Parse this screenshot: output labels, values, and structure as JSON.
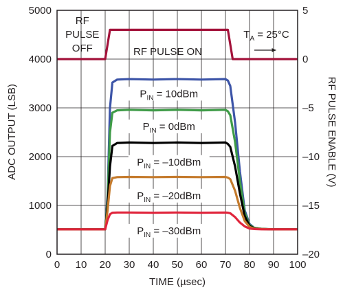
{
  "chart_data": {
    "type": "line",
    "xlabel": "TIME (µsec)",
    "ylabel": "ADC OUTPUT (LSB)",
    "y2label": "RF PULSE ENABLE (V)",
    "xlim": [
      0,
      100
    ],
    "ylim": [
      0,
      5000
    ],
    "y2lim": [
      -20,
      5
    ],
    "x_ticks": [
      0,
      10,
      20,
      30,
      40,
      50,
      60,
      70,
      80,
      90,
      100
    ],
    "y_ticks": [
      0,
      1000,
      2000,
      3000,
      4000,
      5000
    ],
    "y2_ticks": [
      5,
      0,
      -5,
      -10,
      -15,
      -20
    ],
    "grid": true,
    "series": [
      {
        "name": "RF PULSE ENABLE",
        "axis": "right",
        "color": "#a3123a",
        "x": [
          0,
          20,
          22,
          71,
          73,
          100
        ],
        "y": [
          0,
          0,
          3,
          3,
          0,
          0
        ]
      },
      {
        "name": "PIN = 10dBm",
        "axis": "left",
        "color": "#3d55a8",
        "x": [
          0,
          20,
          21,
          22,
          23,
          25,
          30,
          40,
          50,
          60,
          70,
          71,
          72,
          74,
          76,
          78,
          80,
          82,
          85,
          90,
          100
        ],
        "y": [
          510,
          510,
          1200,
          3000,
          3520,
          3580,
          3590,
          3580,
          3590,
          3580,
          3590,
          3560,
          3450,
          2700,
          1700,
          900,
          620,
          540,
          520,
          510,
          510
        ]
      },
      {
        "name": "PIN = 0dBm",
        "axis": "left",
        "color": "#3e9b47",
        "x": [
          0,
          20,
          21,
          22,
          23,
          25,
          30,
          40,
          50,
          60,
          70,
          71,
          72,
          74,
          76,
          78,
          80,
          82,
          85,
          90,
          100
        ],
        "y": [
          510,
          510,
          1100,
          2500,
          2900,
          2950,
          2960,
          2950,
          2960,
          2950,
          2960,
          2930,
          2850,
          2300,
          1500,
          850,
          600,
          540,
          520,
          510,
          510
        ]
      },
      {
        "name": "PIN = –10dBm",
        "axis": "left",
        "color": "#000000",
        "x": [
          0,
          20,
          21,
          22,
          23,
          25,
          30,
          40,
          50,
          60,
          70,
          71,
          72,
          74,
          76,
          78,
          80,
          82,
          85,
          90,
          100
        ],
        "y": [
          510,
          510,
          1000,
          1800,
          2220,
          2280,
          2290,
          2280,
          2290,
          2280,
          2290,
          2260,
          2200,
          1800,
          1250,
          780,
          580,
          530,
          515,
          510,
          510
        ]
      },
      {
        "name": "PIN = –20dBm",
        "axis": "left",
        "color": "#c47a2c",
        "x": [
          0,
          20,
          21,
          22,
          23,
          25,
          30,
          40,
          50,
          60,
          70,
          71,
          72,
          74,
          76,
          78,
          80,
          82,
          85,
          90,
          100
        ],
        "y": [
          510,
          510,
          900,
          1400,
          1560,
          1580,
          1585,
          1580,
          1585,
          1580,
          1585,
          1570,
          1540,
          1300,
          950,
          680,
          560,
          525,
          515,
          510,
          510
        ]
      },
      {
        "name": "PIN = –30dBm",
        "axis": "left",
        "color": "#e0253c",
        "x": [
          0,
          20,
          21,
          22,
          23,
          25,
          30,
          40,
          50,
          60,
          70,
          71,
          72,
          74,
          76,
          78,
          80,
          82,
          85,
          90,
          100
        ],
        "y": [
          510,
          510,
          700,
          820,
          850,
          855,
          855,
          850,
          855,
          850,
          855,
          850,
          840,
          760,
          650,
          570,
          525,
          515,
          510,
          510,
          510
        ]
      }
    ],
    "annotations": {
      "rf_pulse_off": [
        "RF",
        "PULSE",
        "OFF"
      ],
      "rf_pulse_on": "RF PULSE ON",
      "temp": {
        "main": "T",
        "sub": "A",
        "rest": " = 25°C"
      },
      "labels": [
        {
          "main": "P",
          "sub": "IN",
          "rest": " = 10dBm"
        },
        {
          "main": "P",
          "sub": "IN",
          "rest": " = 0dBm"
        },
        {
          "main": "P",
          "sub": "IN",
          "rest": " = –10dBm"
        },
        {
          "main": "P",
          "sub": "IN",
          "rest": " = –20dBm"
        },
        {
          "main": "P",
          "sub": "IN",
          "rest": " = –30dBm"
        }
      ]
    }
  }
}
